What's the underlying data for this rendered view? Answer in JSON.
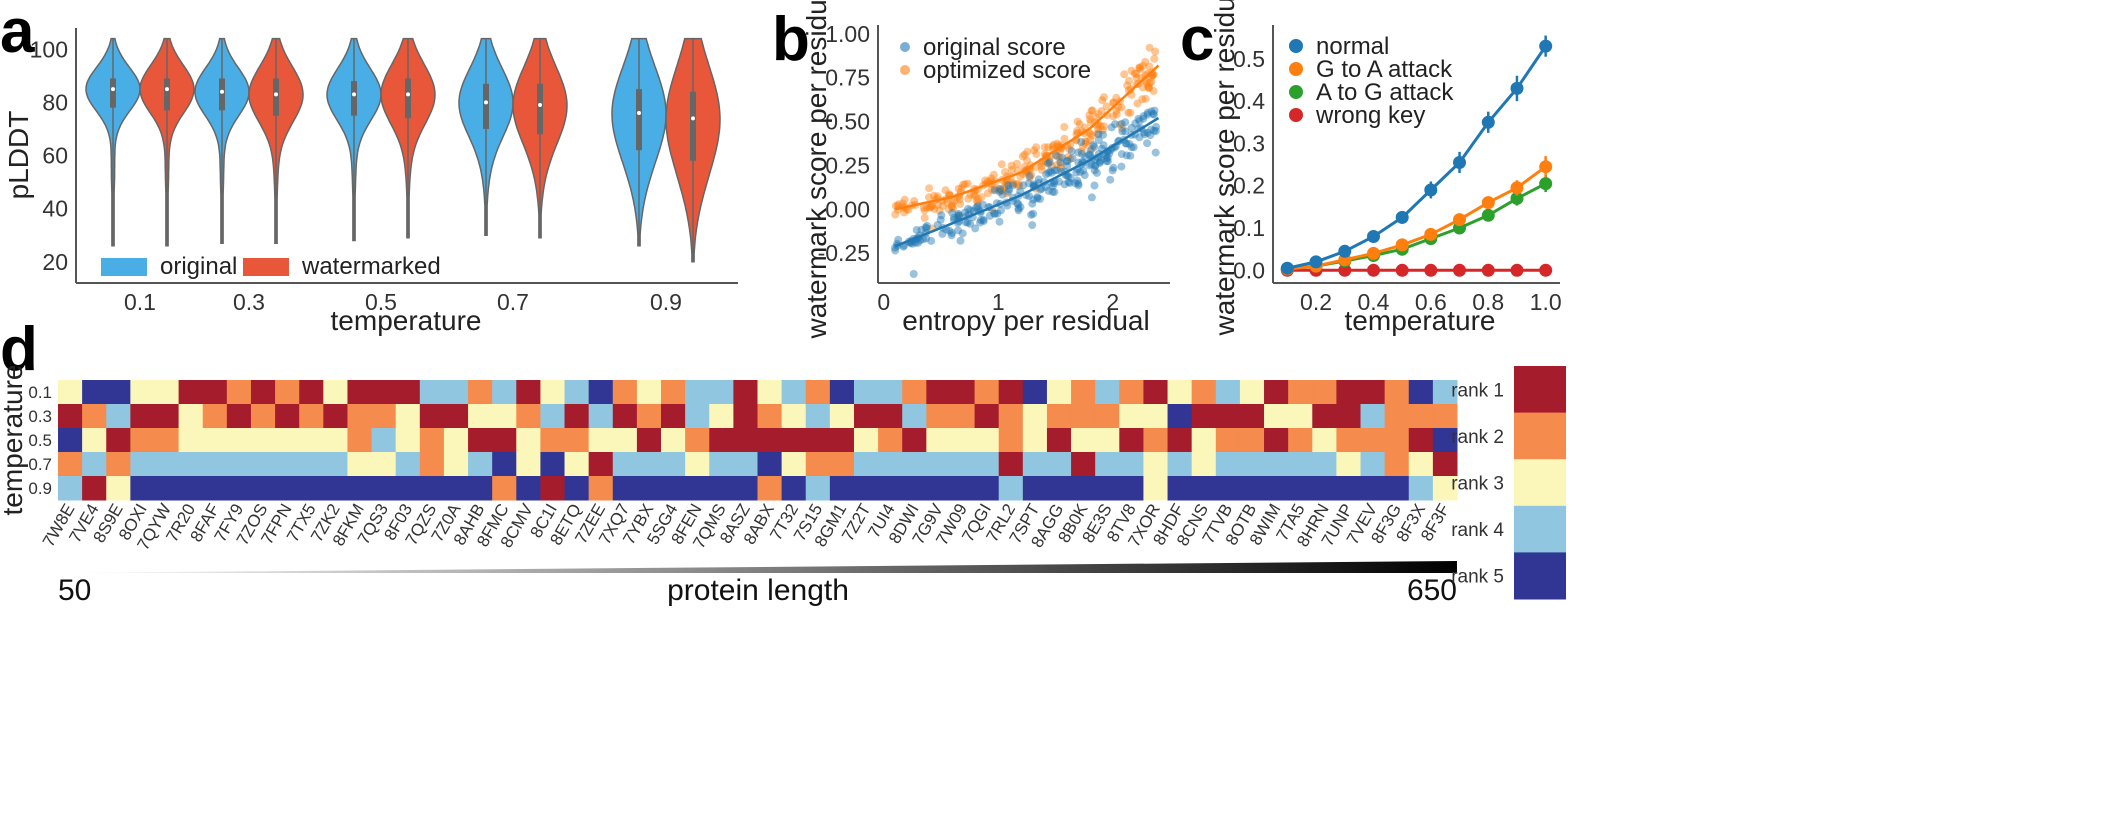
{
  "panels": {
    "a": "a",
    "b": "b",
    "c": "c",
    "d": "d"
  },
  "colors": {
    "original": "#4aaee6",
    "watermarked": "#e9573a",
    "blue": "#1f77b4",
    "orange": "#ff7f0e",
    "green": "#2ca02c",
    "red": "#d62728",
    "rank1": "#a51d2d",
    "rank2": "#f58b4c",
    "rank3": "#fbf7bb",
    "rank4": "#91c6e1",
    "rank5": "#313695"
  },
  "chart_data": [
    {
      "id": "a",
      "type": "violin",
      "xlabel": "temperature",
      "ylabel": "pLDDT",
      "categories": [
        "0.1",
        "0.3",
        "0.5",
        "0.7",
        "0.9"
      ],
      "ylim": [
        12,
        108
      ],
      "yticks": [
        20,
        40,
        60,
        80,
        100
      ],
      "legend": [
        "original",
        "watermarked"
      ],
      "series": [
        {
          "name": "original",
          "median": [
            85,
            84,
            83,
            80,
            76
          ],
          "q1": [
            78,
            77,
            75,
            70,
            62
          ],
          "q3": [
            89,
            89,
            88,
            87,
            85
          ],
          "min": [
            26,
            27,
            28,
            30,
            26
          ],
          "max": [
            104,
            104,
            104,
            104,
            104
          ]
        },
        {
          "name": "watermarked",
          "median": [
            85,
            83,
            83,
            79,
            74
          ],
          "q1": [
            77,
            75,
            74,
            68,
            58
          ],
          "q3": [
            89,
            89,
            89,
            87,
            84
          ],
          "min": [
            26,
            27,
            29,
            29,
            20
          ],
          "max": [
            104,
            104,
            104,
            104,
            104
          ]
        }
      ]
    },
    {
      "id": "b",
      "type": "scatter",
      "xlabel": "entropy per residual",
      "ylabel": "watermark score per residual",
      "xlim": [
        -0.05,
        2.5
      ],
      "ylim": [
        -0.42,
        1.05
      ],
      "xticks": [
        0,
        1,
        2
      ],
      "yticks": [
        "-0.25",
        "0.00",
        "0.25",
        "0.50",
        "0.75",
        "1.00"
      ],
      "series": [
        {
          "name": "original score",
          "trend": {
            "x": [
              0.1,
              0.6,
              1.2,
              1.8,
              2.4
            ],
            "y": [
              -0.21,
              -0.08,
              0.08,
              0.28,
              0.52
            ]
          }
        },
        {
          "name": "optimized score",
          "trend": {
            "x": [
              0.1,
              0.6,
              1.2,
              1.8,
              2.4
            ],
            "y": [
              0.0,
              0.07,
              0.21,
              0.46,
              0.82
            ]
          }
        }
      ]
    },
    {
      "id": "c",
      "type": "line",
      "xlabel": "temperature",
      "ylabel": "watermark score per residual",
      "x": [
        0.1,
        0.2,
        0.3,
        0.4,
        0.5,
        0.6,
        0.7,
        0.8,
        0.9,
        1.0
      ],
      "xticks": [
        "0.2",
        "0.4",
        "0.6",
        "0.8",
        "1.0"
      ],
      "yticks": [
        "0.0",
        "0.1",
        "0.2",
        "0.3",
        "0.4",
        "0.5"
      ],
      "xlim": [
        0.05,
        1.05
      ],
      "ylim": [
        -0.03,
        0.58
      ],
      "series": [
        {
          "name": "normal",
          "values": [
            0.005,
            0.02,
            0.045,
            0.08,
            0.125,
            0.19,
            0.255,
            0.35,
            0.43,
            0.53
          ],
          "err": [
            0.004,
            0.005,
            0.008,
            0.01,
            0.015,
            0.02,
            0.025,
            0.025,
            0.03,
            0.025
          ]
        },
        {
          "name": "G to A attack",
          "values": [
            0.003,
            0.01,
            0.025,
            0.04,
            0.06,
            0.085,
            0.12,
            0.16,
            0.195,
            0.245
          ],
          "err": [
            0.003,
            0.004,
            0.005,
            0.006,
            0.008,
            0.01,
            0.012,
            0.015,
            0.018,
            0.025
          ]
        },
        {
          "name": "A to G attack",
          "values": [
            0.003,
            0.01,
            0.022,
            0.035,
            0.05,
            0.075,
            0.1,
            0.13,
            0.17,
            0.205
          ],
          "err": [
            0.003,
            0.004,
            0.005,
            0.006,
            0.008,
            0.01,
            0.012,
            0.014,
            0.017,
            0.02
          ]
        },
        {
          "name": "wrong key",
          "values": [
            0,
            0,
            0,
            0,
            0,
            0,
            0,
            0,
            0,
            0
          ],
          "err": [
            0.002,
            0.002,
            0.002,
            0.002,
            0.002,
            0.002,
            0.002,
            0.002,
            0.002,
            0.002
          ]
        }
      ]
    },
    {
      "id": "d",
      "type": "heatmap",
      "ylabel": "temperature",
      "rows": [
        "0.1",
        "0.3",
        "0.5",
        "0.7",
        "0.9"
      ],
      "columns": [
        "7W8E",
        "7VE4",
        "8S9E",
        "8OXI",
        "7QYW",
        "7R20",
        "8FAF",
        "7FY9",
        "7ZOS",
        "7FPN",
        "7TX5",
        "7ZK2",
        "8FKM",
        "7QS3",
        "8F03",
        "7QZS",
        "7Z0A",
        "8AHB",
        "8FMC",
        "8CMV",
        "8C1I",
        "8ETQ",
        "7ZEE",
        "7XQ7",
        "7YBX",
        "5SG4",
        "8FEN",
        "7QMS",
        "8ASZ",
        "8ABX",
        "7T32",
        "7S15",
        "8GM1",
        "7Z2T",
        "7UI4",
        "8DWI",
        "7G9V",
        "7W09",
        "7QGI",
        "7RL2",
        "7SPT",
        "8AGG",
        "8B0K",
        "8E3S",
        "8TV8",
        "7XOR",
        "8HDF",
        "8CNS",
        "7TVB",
        "8OTB",
        "8WIM",
        "7TA5",
        "8HRN",
        "7UNP",
        "7VEV",
        "8F3G",
        "8F3X",
        "8F3F"
      ],
      "ranks": [
        [
          3,
          5,
          5,
          3,
          3,
          1,
          1,
          2,
          1,
          2,
          1,
          3,
          1,
          1,
          1,
          4,
          4,
          2,
          4,
          1,
          3,
          4,
          5,
          2,
          3,
          2,
          4,
          4,
          1,
          3,
          4,
          2,
          5,
          4,
          4,
          2,
          1,
          1,
          2,
          1,
          5,
          3,
          2,
          4,
          2,
          1,
          3,
          2,
          4,
          3,
          1,
          2,
          2,
          1,
          1,
          2,
          5,
          4
        ],
        [
          1,
          2,
          4,
          1,
          1,
          3,
          2,
          1,
          2,
          1,
          2,
          1,
          2,
          2,
          3,
          1,
          1,
          3,
          3,
          2,
          4,
          1,
          4,
          1,
          2,
          1,
          4,
          3,
          1,
          2,
          3,
          4,
          3,
          1,
          1,
          4,
          2,
          2,
          1,
          2,
          3,
          2,
          2,
          2,
          3,
          3,
          5,
          1,
          1,
          1,
          3,
          3,
          1,
          1,
          4,
          2,
          2,
          2
        ],
        [
          5,
          3,
          1,
          2,
          2,
          3,
          3,
          3,
          3,
          3,
          3,
          3,
          2,
          4,
          3,
          2,
          3,
          1,
          1,
          3,
          2,
          2,
          3,
          3,
          1,
          3,
          2,
          1,
          1,
          1,
          1,
          1,
          1,
          3,
          2,
          1,
          3,
          3,
          3,
          2,
          3,
          1,
          3,
          3,
          1,
          2,
          1,
          3,
          2,
          2,
          1,
          2,
          3,
          2,
          2,
          2,
          1,
          5
        ],
        [
          2,
          4,
          2,
          4,
          4,
          4,
          4,
          4,
          4,
          4,
          4,
          4,
          3,
          3,
          4,
          2,
          3,
          4,
          5,
          3,
          5,
          3,
          1,
          4,
          4,
          4,
          3,
          4,
          4,
          5,
          3,
          2,
          2,
          4,
          4,
          4,
          4,
          4,
          4,
          1,
          4,
          4,
          1,
          4,
          4,
          3,
          4,
          3,
          4,
          4,
          4,
          4,
          4,
          3,
          4,
          2,
          3,
          1
        ],
        [
          4,
          1,
          3,
          5,
          5,
          5,
          5,
          5,
          5,
          5,
          5,
          5,
          5,
          5,
          5,
          5,
          5,
          5,
          2,
          5,
          1,
          5,
          2,
          5,
          5,
          5,
          5,
          5,
          5,
          2,
          5,
          4,
          5,
          5,
          5,
          5,
          5,
          5,
          5,
          4,
          5,
          5,
          5,
          5,
          5,
          3,
          5,
          5,
          5,
          5,
          5,
          5,
          5,
          5,
          5,
          5,
          4,
          3
        ]
      ],
      "rank_labels": [
        "rank 1",
        "rank 2",
        "rank 3",
        "rank 4",
        "rank 5"
      ],
      "length_min": "50",
      "length_max": "650",
      "length_label": "protein length"
    }
  ]
}
